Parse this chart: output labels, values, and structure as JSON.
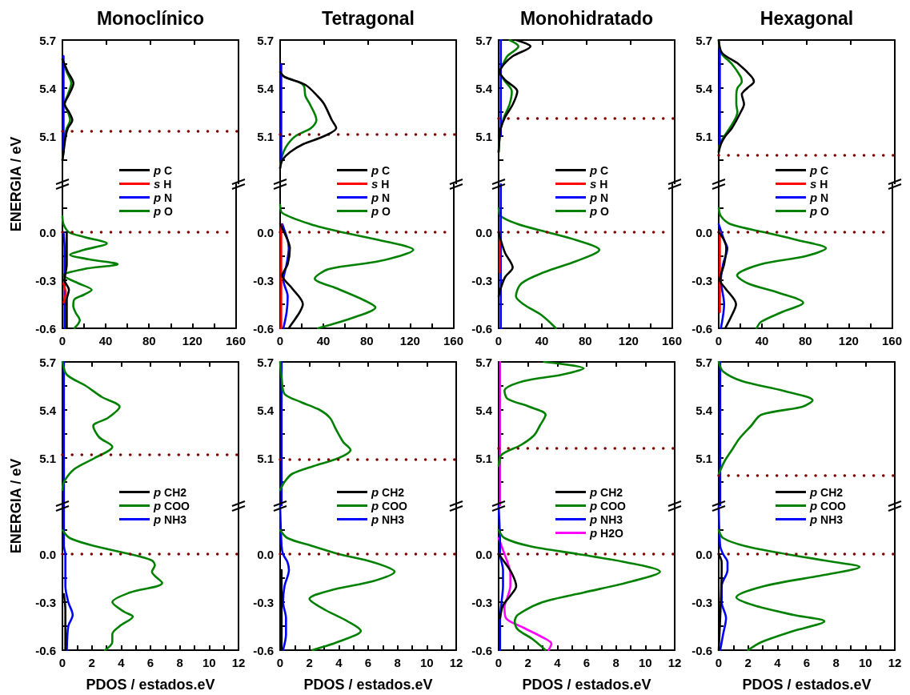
{
  "chart_data": [
    {
      "type": "line",
      "title": "Monoclínico",
      "ylabel": "ENERGIA / eV",
      "tick_labels": "y",
      "xlim": [
        0,
        160
      ],
      "xticks": [
        0,
        40,
        80,
        120,
        160
      ],
      "ylim": [
        4.8,
        5.7
      ],
      "yticks": [
        {
          "value": 4.95,
          "label": null
        },
        5.1,
        {
          "value": 5.25,
          "label": null
        },
        5.4,
        {
          "value": 5.55,
          "label": null
        },
        5.7
      ],
      "ref_lines": [
        {
          "axis": "y",
          "value": 5.13,
          "color": "#800000",
          "line_style": "dotted"
        }
      ],
      "series": [
        {
          "color": "#000000",
          "x": [
            0,
            5,
            10,
            6,
            2,
            6,
            9,
            5,
            3,
            1,
            0
          ],
          "values": [
            5.58,
            5.5,
            5.43,
            5.36,
            5.3,
            5.25,
            5.2,
            5.15,
            5.1,
            5.0,
            4.95
          ]
        },
        {
          "color": "#0000ff",
          "x": [
            1,
            1
          ],
          "values": [
            5.6,
            5.0
          ]
        },
        {
          "color": "#008000",
          "x": [
            0,
            4,
            8,
            5,
            2,
            5,
            7,
            4,
            2,
            1,
            0
          ],
          "values": [
            5.58,
            5.5,
            5.43,
            5.36,
            5.3,
            5.25,
            5.2,
            5.15,
            5.1,
            5.0,
            4.95
          ]
        }
      ]
    },
    {
      "type": "line",
      "legend": "top",
      "xlim": [
        0,
        160
      ],
      "xticks": [
        0,
        {
          "value": 20,
          "label": null
        },
        40,
        {
          "value": 60,
          "label": null
        },
        80,
        {
          "value": 100,
          "label": null
        },
        120,
        {
          "value": 140,
          "label": null
        },
        160
      ],
      "ylim": [
        -0.6,
        0.3
      ],
      "yticks": [
        -0.6,
        {
          "value": -0.45,
          "label": null
        },
        -0.3,
        {
          "value": -0.15,
          "label": null
        },
        {
          "value": 0,
          "label": "0.0"
        },
        {
          "value": 0.15,
          "label": null
        }
      ],
      "ref_lines": [
        {
          "axis": "y",
          "value": 0,
          "color": "#800000",
          "line_style": "dotted"
        }
      ],
      "series": [
        {
          "name": "p C",
          "color": "#000000",
          "x": [
            4,
            4,
            4,
            2,
            6,
            4,
            4,
            4
          ],
          "values": [
            0,
            -0.1,
            -0.2,
            -0.3,
            -0.36,
            -0.42,
            -0.5,
            -0.6
          ]
        },
        {
          "name": "s H",
          "color": "#ff0000",
          "x": [
            1,
            3,
            1
          ],
          "values": [
            -0.32,
            -0.38,
            -0.44
          ]
        },
        {
          "name": "p N",
          "color": "#0000ff",
          "x": [
            1,
            2,
            2,
            2,
            2
          ],
          "values": [
            0,
            -0.1,
            -0.3,
            -0.45,
            -0.6
          ]
        },
        {
          "name": "p O",
          "color": "#008000",
          "x": [
            0,
            1,
            6,
            20,
            41,
            20,
            7,
            25,
            51,
            20,
            1,
            15,
            27,
            20,
            11,
            10,
            12,
            16,
            11
          ],
          "values": [
            0.1,
            0.05,
            0,
            -0.03,
            -0.07,
            -0.11,
            -0.14,
            -0.17,
            -0.2,
            -0.23,
            -0.27,
            -0.32,
            -0.36,
            -0.39,
            -0.42,
            -0.46,
            -0.5,
            -0.55,
            -0.6
          ]
        }
      ]
    },
    {
      "type": "line",
      "title": "Tetragonal",
      "tick_labels": "y",
      "xlim": [
        0,
        160
      ],
      "xticks": [
        0,
        40,
        80,
        120,
        160
      ],
      "ylim": [
        4.8,
        5.7
      ],
      "yticks": [
        {
          "value": 4.95,
          "label": null
        },
        5.1,
        {
          "value": 5.25,
          "label": null
        },
        5.4,
        {
          "value": 5.55,
          "label": null
        },
        5.7
      ],
      "ref_lines": [
        {
          "axis": "y",
          "value": 5.11,
          "color": "#800000",
          "line_style": "dotted"
        }
      ],
      "series": [
        {
          "color": "#000000",
          "x": [
            0,
            4,
            23,
            34,
            40,
            47,
            51,
            40,
            21,
            9,
            2,
            0
          ],
          "values": [
            5.5,
            5.47,
            5.42,
            5.35,
            5.3,
            5.2,
            5.15,
            5.1,
            5.05,
            5.0,
            4.95,
            4.9
          ]
        },
        {
          "color": "#0000ff",
          "x": [
            1,
            1
          ],
          "values": [
            5.55,
            4.95
          ]
        },
        {
          "color": "#008000",
          "x": [
            0,
            4,
            21,
            23,
            27,
            33,
            28,
            14,
            7,
            3,
            1,
            0
          ],
          "values": [
            5.5,
            5.47,
            5.42,
            5.35,
            5.3,
            5.2,
            5.15,
            5.1,
            5.05,
            5.0,
            4.95,
            4.9
          ]
        }
      ]
    },
    {
      "type": "line",
      "legend": "top",
      "xlim": [
        0,
        160
      ],
      "xticks": [
        0,
        {
          "value": 20,
          "label": null
        },
        40,
        {
          "value": 60,
          "label": null
        },
        80,
        {
          "value": 100,
          "label": null
        },
        120,
        {
          "value": 140,
          "label": null
        },
        160
      ],
      "ylim": [
        -0.6,
        0.3
      ],
      "yticks": [
        -0.6,
        {
          "value": -0.45,
          "label": null
        },
        -0.3,
        {
          "value": -0.15,
          "label": null
        },
        {
          "value": 0,
          "label": "0.0"
        },
        {
          "value": 0.15,
          "label": null
        }
      ],
      "ref_lines": [
        {
          "axis": "y",
          "value": 0,
          "color": "#800000",
          "line_style": "dotted"
        }
      ],
      "series": [
        {
          "name": "p C",
          "color": "#000000",
          "x": [
            0,
            7,
            9,
            7,
            2,
            11,
            21,
            18,
            11,
            8
          ],
          "values": [
            0.05,
            -0.05,
            -0.1,
            -0.2,
            -0.27,
            -0.35,
            -0.45,
            -0.5,
            -0.57,
            -0.6
          ]
        },
        {
          "name": "s H",
          "color": "#ff0000",
          "x": [
            1,
            1
          ],
          "values": [
            0.05,
            -0.6
          ]
        },
        {
          "name": "p N",
          "color": "#0000ff",
          "x": [
            2,
            7,
            8,
            6,
            3,
            7,
            6,
            3
          ],
          "values": [
            0.05,
            -0.05,
            -0.1,
            -0.2,
            -0.3,
            -0.4,
            -0.5,
            -0.6
          ]
        },
        {
          "name": "p O",
          "color": "#008000",
          "x": [
            0,
            2,
            28,
            57,
            92,
            123,
            92,
            45,
            32,
            52,
            76,
            88,
            69,
            35
          ],
          "values": [
            0.17,
            0.12,
            0.05,
            0,
            -0.05,
            -0.11,
            -0.18,
            -0.23,
            -0.29,
            -0.35,
            -0.42,
            -0.47,
            -0.53,
            -0.6
          ]
        }
      ]
    },
    {
      "type": "line",
      "title": "Monohidratado",
      "tick_labels": "y",
      "xlim": [
        0,
        160
      ],
      "xticks": [
        0,
        40,
        80,
        120,
        160
      ],
      "ylim": [
        4.8,
        5.7
      ],
      "yticks": [
        {
          "value": 4.95,
          "label": null
        },
        5.1,
        {
          "value": 5.25,
          "label": null
        },
        5.4,
        {
          "value": 5.55,
          "label": null
        },
        5.7
      ],
      "ref_lines": [
        {
          "axis": "y",
          "value": 5.21,
          "color": "#800000",
          "line_style": "dotted"
        }
      ],
      "series": [
        {
          "color": "#000000",
          "x": [
            16,
            29,
            13,
            5,
            1,
            6,
            17,
            13,
            6,
            2,
            1,
            0
          ],
          "values": [
            5.7,
            5.66,
            5.6,
            5.55,
            5.5,
            5.45,
            5.38,
            5.3,
            5.22,
            5.15,
            5.1,
            5.0
          ]
        },
        {
          "color": "#0000ff",
          "x": [
            2,
            2
          ],
          "values": [
            5.7,
            5.1
          ]
        },
        {
          "color": "#008000",
          "x": [
            10,
            18,
            8,
            4,
            1,
            5,
            12,
            10,
            5,
            2,
            1,
            0
          ],
          "values": [
            5.7,
            5.66,
            5.6,
            5.55,
            5.5,
            5.45,
            5.38,
            5.3,
            5.22,
            5.15,
            5.1,
            5.0
          ]
        }
      ]
    },
    {
      "type": "line",
      "legend": "top",
      "xlim": [
        0,
        160
      ],
      "xticks": [
        0,
        {
          "value": 20,
          "label": null
        },
        40,
        {
          "value": 60,
          "label": null
        },
        80,
        {
          "value": 100,
          "label": null
        },
        120,
        {
          "value": 140,
          "label": null
        },
        160
      ],
      "ylim": [
        -0.6,
        0.3
      ],
      "yticks": [
        -0.6,
        {
          "value": -0.45,
          "label": null
        },
        -0.3,
        {
          "value": -0.15,
          "label": null
        },
        {
          "value": 0,
          "label": "0.0"
        },
        {
          "value": 0.15,
          "label": null
        }
      ],
      "ref_lines": [
        {
          "axis": "y",
          "value": 0,
          "color": "#800000",
          "line_style": "dotted"
        }
      ],
      "series": [
        {
          "name": "p C",
          "color": "#000000",
          "x": [
            0,
            2,
            6,
            13,
            6,
            2,
            0
          ],
          "values": [
            0,
            -0.05,
            -0.13,
            -0.22,
            -0.28,
            -0.35,
            -0.4
          ]
        },
        {
          "name": "s H",
          "color": "#ff0000",
          "x": [
            1,
            1
          ],
          "values": [
            -0.02,
            -0.25
          ]
        },
        {
          "name": "p N",
          "color": "#0000ff",
          "x": [
            2,
            2
          ],
          "values": [
            0.3,
            -0.6
          ]
        },
        {
          "name": "p O",
          "color": "#008000",
          "x": [
            0,
            2,
            18,
            45,
            72,
            93,
            72,
            42,
            21,
            16,
            23,
            40,
            53
          ],
          "values": [
            0.15,
            0.1,
            0.05,
            0,
            -0.05,
            -0.11,
            -0.18,
            -0.25,
            -0.32,
            -0.4,
            -0.45,
            -0.52,
            -0.6
          ]
        }
      ]
    },
    {
      "type": "line",
      "title": "Hexagonal",
      "tick_labels": "y",
      "xlim": [
        0,
        160
      ],
      "xticks": [
        0,
        40,
        80,
        120,
        160
      ],
      "ylim": [
        4.8,
        5.7
      ],
      "yticks": [
        {
          "value": 4.95,
          "label": null
        },
        5.1,
        {
          "value": 5.25,
          "label": null
        },
        5.4,
        {
          "value": 5.55,
          "label": null
        },
        5.7
      ],
      "ref_lines": [
        {
          "axis": "y",
          "value": 4.98,
          "color": "#800000",
          "line_style": "dotted"
        }
      ],
      "series": [
        {
          "color": "#000000",
          "x": [
            0,
            3,
            18,
            30,
            32,
            26,
            21,
            23,
            20,
            12,
            6,
            2,
            0
          ],
          "values": [
            5.7,
            5.62,
            5.55,
            5.47,
            5.44,
            5.4,
            5.36,
            5.3,
            5.25,
            5.15,
            5.1,
            5.05,
            5.0
          ]
        },
        {
          "color": "#0000ff",
          "x": [
            1,
            1
          ],
          "values": [
            5.65,
            5.05
          ]
        },
        {
          "color": "#008000",
          "x": [
            0,
            2,
            12,
            20,
            21,
            17,
            16,
            16,
            17,
            10,
            5,
            1,
            0
          ],
          "values": [
            5.7,
            5.62,
            5.55,
            5.47,
            5.44,
            5.4,
            5.36,
            5.3,
            5.25,
            5.15,
            5.1,
            5.05,
            5.0
          ]
        }
      ]
    },
    {
      "type": "line",
      "legend": "top",
      "xlim": [
        0,
        160
      ],
      "xticks": [
        0,
        {
          "value": 20,
          "label": null
        },
        40,
        {
          "value": 60,
          "label": null
        },
        80,
        {
          "value": 100,
          "label": null
        },
        120,
        {
          "value": 140,
          "label": null
        },
        160
      ],
      "ylim": [
        -0.6,
        0.3
      ],
      "yticks": [
        -0.6,
        {
          "value": -0.45,
          "label": null
        },
        -0.3,
        {
          "value": -0.15,
          "label": null
        },
        {
          "value": 0,
          "label": "0.0"
        },
        {
          "value": 0.15,
          "label": null
        }
      ],
      "ref_lines": [
        {
          "axis": "y",
          "value": 0,
          "color": "#800000",
          "line_style": "dotted"
        }
      ],
      "series": [
        {
          "name": "p C",
          "color": "#000000",
          "x": [
            0,
            5,
            7,
            5,
            1,
            6,
            16,
            12,
            6
          ],
          "values": [
            0,
            -0.05,
            -0.1,
            -0.2,
            -0.3,
            -0.35,
            -0.45,
            -0.52,
            -0.6
          ]
        },
        {
          "name": "s H",
          "color": "#ff0000",
          "x": [
            1,
            1
          ],
          "values": [
            0,
            -0.5
          ]
        },
        {
          "name": "p N",
          "color": "#0000ff",
          "x": [
            0,
            5,
            8,
            4,
            2,
            5,
            2
          ],
          "values": [
            0.05,
            -0.05,
            -0.1,
            -0.2,
            -0.3,
            -0.45,
            -0.6
          ]
        },
        {
          "name": "p O",
          "color": "#008000",
          "x": [
            0,
            2,
            11,
            42,
            73,
            99,
            80,
            39,
            17,
            27,
            56,
            78,
            58,
            39,
            35
          ],
          "values": [
            0.15,
            0.1,
            0.05,
            0,
            -0.05,
            -0.1,
            -0.15,
            -0.2,
            -0.27,
            -0.32,
            -0.38,
            -0.44,
            -0.5,
            -0.56,
            -0.6
          ]
        }
      ]
    },
    {
      "type": "line",
      "ylabel": "ENERGIA / eV",
      "tick_labels": "y",
      "xlim": [
        0,
        12
      ],
      "xticks": [
        0,
        2,
        4,
        6,
        8,
        10,
        12
      ],
      "ylim": [
        4.8,
        5.7
      ],
      "yticks": [
        {
          "value": 4.95,
          "label": null
        },
        5.1,
        {
          "value": 5.25,
          "label": null
        },
        5.4,
        {
          "value": 5.55,
          "label": null
        },
        5.7
      ],
      "ref_lines": [
        {
          "axis": "y",
          "value": 5.12,
          "color": "#800000",
          "line_style": "dotted"
        }
      ],
      "series": [
        {
          "color": "#008000",
          "x": [
            0,
            0.3,
            1.6,
            2.7,
            3.9,
            3.1,
            2.1,
            2.5,
            3.4,
            2.2,
            0.8,
            0.1,
            0
          ],
          "values": [
            5.7,
            5.62,
            5.55,
            5.48,
            5.42,
            5.35,
            5.3,
            5.23,
            5.17,
            5.1,
            5.03,
            4.95,
            4.9
          ]
        },
        {
          "color": "#0000ff",
          "x": [
            0.1,
            0.1
          ],
          "values": [
            5.7,
            4.8
          ]
        }
      ]
    },
    {
      "type": "line",
      "legend": "top",
      "xlabel": "PDOS / estados.eV",
      "xlim": [
        0,
        12
      ],
      "xticks": [
        0,
        {
          "value": 1,
          "label": null
        },
        2,
        {
          "value": 3,
          "label": null
        },
        4,
        {
          "value": 5,
          "label": null
        },
        6,
        {
          "value": 7,
          "label": null
        },
        8,
        {
          "value": 9,
          "label": null
        },
        10,
        {
          "value": 11,
          "label": null
        },
        12
      ],
      "ylim": [
        -0.6,
        0.3
      ],
      "yticks": [
        -0.6,
        {
          "value": -0.45,
          "label": null
        },
        -0.3,
        {
          "value": -0.15,
          "label": null
        },
        {
          "value": 0,
          "label": "0.0"
        },
        {
          "value": 0.15,
          "label": null
        }
      ],
      "ref_lines": [
        {
          "axis": "y",
          "value": 0,
          "color": "#800000",
          "line_style": "dotted"
        }
      ],
      "series": [
        {
          "name": "p CH2",
          "color": "#000000",
          "x": [
            0.1,
            0.2,
            0.2
          ],
          "values": [
            -0.25,
            -0.35,
            -0.6
          ]
        },
        {
          "name": "p COO",
          "color": "#008000",
          "x": [
            0,
            0.5,
            2.2,
            4.6,
            6.1,
            6.3,
            6.1,
            6.8,
            4.6,
            3.4,
            4.2,
            4.8,
            3.9,
            3.4,
            3.4,
            2.9
          ],
          "values": [
            0.15,
            0.1,
            0.05,
            0,
            -0.04,
            -0.07,
            -0.11,
            -0.18,
            -0.24,
            -0.3,
            -0.36,
            -0.39,
            -0.45,
            -0.5,
            -0.55,
            -0.6
          ]
        },
        {
          "name": "p NH3",
          "color": "#0000ff",
          "x": [
            0.1,
            0.1,
            0.2,
            0.2,
            0.4,
            0.7,
            0.4,
            0.3
          ],
          "values": [
            0.3,
            0.05,
            0,
            -0.2,
            -0.3,
            -0.38,
            -0.45,
            -0.6
          ]
        }
      ]
    },
    {
      "type": "line",
      "tick_labels": "y",
      "xlim": [
        0,
        12
      ],
      "xticks": [
        0,
        2,
        4,
        6,
        8,
        10,
        12
      ],
      "ylim": [
        4.8,
        5.7
      ],
      "yticks": [
        {
          "value": 4.95,
          "label": null
        },
        5.1,
        {
          "value": 5.25,
          "label": null
        },
        5.4,
        {
          "value": 5.55,
          "label": null
        },
        5.7
      ],
      "ref_lines": [
        {
          "axis": "y",
          "value": 5.09,
          "color": "#800000",
          "line_style": "dotted"
        }
      ],
      "series": [
        {
          "color": "#008000",
          "x": [
            0,
            0.1,
            0.3,
            1.4,
            2.7,
            3.4,
            3.8,
            4.3,
            4.8,
            4.0,
            2.3,
            0.8,
            0.3,
            0
          ],
          "values": [
            5.7,
            5.6,
            5.5,
            5.45,
            5.4,
            5.35,
            5.28,
            5.2,
            5.15,
            5.1,
            5.05,
            5.0,
            4.95,
            4.9
          ]
        },
        {
          "color": "#0000ff",
          "x": [
            0.1,
            0.1
          ],
          "values": [
            5.7,
            4.8
          ]
        }
      ]
    },
    {
      "type": "line",
      "legend": "top",
      "xlabel": "PDOS / estados.eV",
      "xlim": [
        0,
        12
      ],
      "xticks": [
        0,
        {
          "value": 1,
          "label": null
        },
        2,
        {
          "value": 3,
          "label": null
        },
        4,
        {
          "value": 5,
          "label": null
        },
        6,
        {
          "value": 7,
          "label": null
        },
        8,
        {
          "value": 9,
          "label": null
        },
        10,
        {
          "value": 11,
          "label": null
        },
        12
      ],
      "ylim": [
        -0.6,
        0.3
      ],
      "yticks": [
        -0.6,
        {
          "value": -0.45,
          "label": null
        },
        -0.3,
        {
          "value": -0.15,
          "label": null
        },
        {
          "value": 0,
          "label": "0.0"
        },
        {
          "value": 0.15,
          "label": null
        }
      ],
      "ref_lines": [
        {
          "axis": "y",
          "value": 0,
          "color": "#800000",
          "line_style": "dotted"
        }
      ],
      "series": [
        {
          "name": "p CH2",
          "color": "#000000",
          "x": [
            0.1,
            0.1
          ],
          "values": [
            -0.1,
            -0.6
          ]
        },
        {
          "name": "p COO",
          "color": "#008000",
          "x": [
            0,
            0.5,
            2.2,
            4.0,
            6.3,
            7.8,
            6.3,
            3.7,
            2.0,
            3.1,
            4.6,
            5.5,
            4.2,
            2.2
          ],
          "values": [
            0.15,
            0.1,
            0.05,
            0,
            -0.05,
            -0.11,
            -0.17,
            -0.22,
            -0.28,
            -0.35,
            -0.42,
            -0.48,
            -0.54,
            -0.6
          ]
        },
        {
          "name": "p NH3",
          "color": "#0000ff",
          "x": [
            0,
            0.1,
            0.2,
            0.5,
            0.6,
            0.3,
            0.2,
            0.4,
            0.4,
            0.2
          ],
          "values": [
            0.3,
            0.05,
            0,
            -0.05,
            -0.1,
            -0.2,
            -0.3,
            -0.4,
            -0.5,
            -0.6
          ]
        }
      ]
    },
    {
      "type": "line",
      "tick_labels": "y",
      "xlim": [
        0,
        12
      ],
      "xticks": [
        0,
        2,
        4,
        6,
        8,
        10,
        12
      ],
      "ylim": [
        4.8,
        5.7
      ],
      "yticks": [
        {
          "value": 4.95,
          "label": null
        },
        5.1,
        {
          "value": 5.25,
          "label": null
        },
        5.4,
        {
          "value": 5.55,
          "label": null
        },
        5.7
      ],
      "ref_lines": [
        {
          "axis": "y",
          "value": 5.16,
          "color": "#800000",
          "line_style": "dotted"
        }
      ],
      "series": [
        {
          "color": "#008000",
          "x": [
            3.1,
            5.8,
            4.3,
            1.7,
            0.4,
            0.6,
            2.1,
            3.2,
            2.8,
            2.4,
            1.5,
            0.2,
            0
          ],
          "values": [
            5.7,
            5.66,
            5.62,
            5.58,
            5.52,
            5.47,
            5.42,
            5.37,
            5.3,
            5.24,
            5.18,
            5.12,
            5.05
          ]
        },
        {
          "color": "#ff00ff",
          "x": [
            0.1,
            0.1
          ],
          "values": [
            5.7,
            4.8
          ]
        }
      ]
    },
    {
      "type": "line",
      "legend": "top",
      "xlabel": "PDOS / estados.eV",
      "xlim": [
        0,
        12
      ],
      "xticks": [
        0,
        {
          "value": 1,
          "label": null
        },
        2,
        {
          "value": 3,
          "label": null
        },
        4,
        {
          "value": 5,
          "label": null
        },
        6,
        {
          "value": 7,
          "label": null
        },
        8,
        {
          "value": 9,
          "label": null
        },
        10,
        {
          "value": 11,
          "label": null
        },
        12
      ],
      "ylim": [
        -0.6,
        0.3
      ],
      "yticks": [
        -0.6,
        {
          "value": -0.45,
          "label": null
        },
        -0.3,
        {
          "value": -0.15,
          "label": null
        },
        {
          "value": 0,
          "label": "0.0"
        },
        {
          "value": 0.15,
          "label": null
        }
      ],
      "ref_lines": [
        {
          "axis": "y",
          "value": 0,
          "color": "#800000",
          "line_style": "dotted"
        }
      ],
      "series": [
        {
          "name": "p CH2",
          "color": "#000000",
          "x": [
            0,
            0.4,
            0.9,
            1.2,
            0.8,
            0.3,
            0.1
          ],
          "values": [
            0,
            -0.05,
            -0.12,
            -0.2,
            -0.26,
            -0.32,
            -0.4
          ]
        },
        {
          "name": "p COO",
          "color": "#008000",
          "x": [
            0,
            0.4,
            2.1,
            5.4,
            8.6,
            11.0,
            9.1,
            5.8,
            3.0,
            1.3,
            1.1,
            1.3,
            2.3,
            3.2
          ],
          "values": [
            0.15,
            0.1,
            0.05,
            0,
            -0.05,
            -0.11,
            -0.17,
            -0.24,
            -0.3,
            -0.38,
            -0.42,
            -0.47,
            -0.53,
            -0.6
          ]
        },
        {
          "name": "p NH3",
          "color": "#0000ff",
          "x": [
            0,
            0.1,
            0.1,
            0.3,
            0.3,
            0.2,
            0.1,
            0.1
          ],
          "values": [
            0.3,
            0.05,
            0,
            -0.1,
            -0.2,
            -0.3,
            -0.4,
            -0.6
          ]
        },
        {
          "name": "p H2O",
          "color": "#ff00ff",
          "x": [
            0,
            0.2,
            0.4,
            0.6,
            0.8,
            0.8,
            0.6,
            0.4,
            0.5,
            1.7,
            3.0,
            3.6,
            3.4
          ],
          "values": [
            0.1,
            0.05,
            0,
            -0.05,
            -0.12,
            -0.2,
            -0.27,
            -0.33,
            -0.4,
            -0.46,
            -0.52,
            -0.56,
            -0.6
          ]
        }
      ]
    },
    {
      "type": "line",
      "tick_labels": "y",
      "xlim": [
        0,
        12
      ],
      "xticks": [
        0,
        2,
        4,
        6,
        8,
        10,
        12
      ],
      "ylim": [
        4.8,
        5.7
      ],
      "yticks": [
        {
          "value": 4.95,
          "label": null
        },
        5.1,
        {
          "value": 5.25,
          "label": null
        },
        5.4,
        {
          "value": 5.55,
          "label": null
        },
        5.7
      ],
      "ref_lines": [
        {
          "axis": "y",
          "value": 4.99,
          "color": "#800000",
          "line_style": "dotted"
        }
      ],
      "series": [
        {
          "color": "#008000",
          "x": [
            0,
            0.3,
            1.6,
            4.4,
            6.4,
            5.7,
            2.9,
            2.2,
            1.4,
            0.9,
            0.4,
            0
          ],
          "values": [
            5.7,
            5.64,
            5.58,
            5.52,
            5.46,
            5.42,
            5.37,
            5.3,
            5.22,
            5.15,
            5.08,
            5.0
          ]
        },
        {
          "color": "#0000ff",
          "x": [
            0.1,
            0.1
          ],
          "values": [
            5.7,
            4.8
          ]
        }
      ]
    },
    {
      "type": "line",
      "legend": "top",
      "xlabel": "PDOS / estados.eV",
      "xlim": [
        0,
        12
      ],
      "xticks": [
        0,
        {
          "value": 1,
          "label": null
        },
        2,
        {
          "value": 3,
          "label": null
        },
        4,
        {
          "value": 5,
          "label": null
        },
        6,
        {
          "value": 7,
          "label": null
        },
        8,
        {
          "value": 9,
          "label": null
        },
        10,
        {
          "value": 11,
          "label": null
        },
        12
      ],
      "ylim": [
        -0.6,
        0.3
      ],
      "yticks": [
        -0.6,
        {
          "value": -0.45,
          "label": null
        },
        -0.3,
        {
          "value": -0.15,
          "label": null
        },
        {
          "value": 0,
          "label": "0.0"
        },
        {
          "value": 0.15,
          "label": null
        }
      ],
      "ref_lines": [
        {
          "axis": "y",
          "value": 0,
          "color": "#800000",
          "line_style": "dotted"
        }
      ],
      "series": [
        {
          "name": "p CH2",
          "color": "#000000",
          "x": [
            0,
            0.2,
            0.2,
            0.1,
            0
          ],
          "values": [
            0,
            -0.05,
            -0.1,
            -0.4,
            -0.6
          ]
        },
        {
          "name": "p COO",
          "color": "#008000",
          "x": [
            0,
            0.3,
            1.8,
            4.6,
            7.9,
            9.6,
            7.2,
            3.1,
            1.2,
            2.4,
            5.1,
            7.2,
            5.1,
            2.9,
            2.0
          ],
          "values": [
            0.15,
            0.1,
            0.05,
            0,
            -0.05,
            -0.08,
            -0.13,
            -0.2,
            -0.27,
            -0.32,
            -0.38,
            -0.42,
            -0.48,
            -0.55,
            -0.6
          ]
        },
        {
          "name": "p NH3",
          "color": "#0000ff",
          "x": [
            0,
            0.1,
            0.3,
            0.6,
            0.6,
            0.2,
            0.2,
            0.5,
            0.3,
            0.1
          ],
          "values": [
            0.3,
            0.05,
            0,
            -0.05,
            -0.1,
            -0.2,
            -0.3,
            -0.4,
            -0.5,
            -0.6
          ]
        }
      ]
    }
  ]
}
